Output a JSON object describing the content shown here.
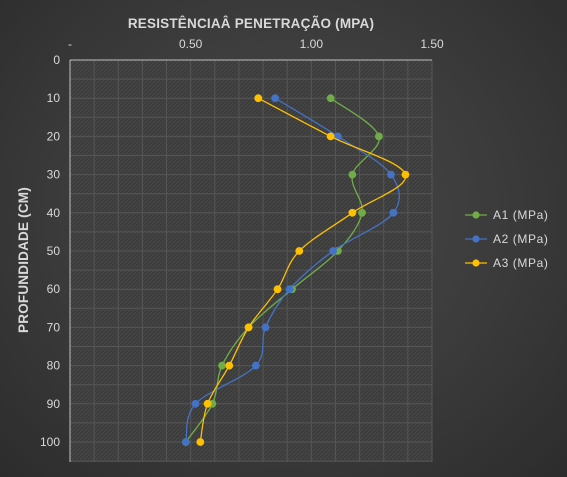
{
  "chart_data": {
    "type": "line",
    "smooth": true,
    "orientation": "depth-profile",
    "xlabel": "RESISTÊNCIAÂ PENETRAÇÃO (MPA)",
    "ylabel": "PROFUNDIDADE (CM)",
    "xlim": [
      0,
      1.5
    ],
    "ylim": [
      0,
      100
    ],
    "x_axis_position": "top",
    "y_axis_reversed": true,
    "x_ticks": [
      0,
      0.5,
      1.0,
      1.5
    ],
    "x_tick_labels": [
      "-",
      "0.50",
      "1.00",
      "1.50"
    ],
    "y_ticks": [
      0,
      10,
      20,
      30,
      40,
      50,
      60,
      70,
      80,
      90,
      100
    ],
    "y_tick_labels": [
      "0",
      "10",
      "20",
      "30",
      "40",
      "50",
      "60",
      "70",
      "80",
      "90",
      "100"
    ],
    "grid": true,
    "legend_position": "right",
    "series": [
      {
        "name": "A1 (MPa)",
        "color": "#70ad47",
        "points": [
          {
            "x": 1.08,
            "y": 10
          },
          {
            "x": 1.28,
            "y": 20
          },
          {
            "x": 1.17,
            "y": 30
          },
          {
            "x": 1.21,
            "y": 40
          },
          {
            "x": 1.11,
            "y": 50
          },
          {
            "x": 0.92,
            "y": 60
          },
          {
            "x": 0.74,
            "y": 70
          },
          {
            "x": 0.63,
            "y": 80
          },
          {
            "x": 0.59,
            "y": 90
          },
          {
            "x": 0.48,
            "y": 100
          }
        ]
      },
      {
        "name": "A2 (MPa)",
        "color": "#4472c4",
        "points": [
          {
            "x": 0.85,
            "y": 10
          },
          {
            "x": 1.11,
            "y": 20
          },
          {
            "x": 1.33,
            "y": 30
          },
          {
            "x": 1.34,
            "y": 40
          },
          {
            "x": 1.09,
            "y": 50
          },
          {
            "x": 0.91,
            "y": 60
          },
          {
            "x": 0.81,
            "y": 70
          },
          {
            "x": 0.77,
            "y": 80
          },
          {
            "x": 0.52,
            "y": 90
          },
          {
            "x": 0.48,
            "y": 100
          }
        ]
      },
      {
        "name": "A3 (MPa)",
        "color": "#ffc000",
        "points": [
          {
            "x": 0.78,
            "y": 10
          },
          {
            "x": 1.08,
            "y": 20
          },
          {
            "x": 1.39,
            "y": 30
          },
          {
            "x": 1.17,
            "y": 40
          },
          {
            "x": 0.95,
            "y": 50
          },
          {
            "x": 0.86,
            "y": 60
          },
          {
            "x": 0.74,
            "y": 70
          },
          {
            "x": 0.66,
            "y": 80
          },
          {
            "x": 0.57,
            "y": 90
          },
          {
            "x": 0.54,
            "y": 100
          }
        ]
      }
    ]
  }
}
